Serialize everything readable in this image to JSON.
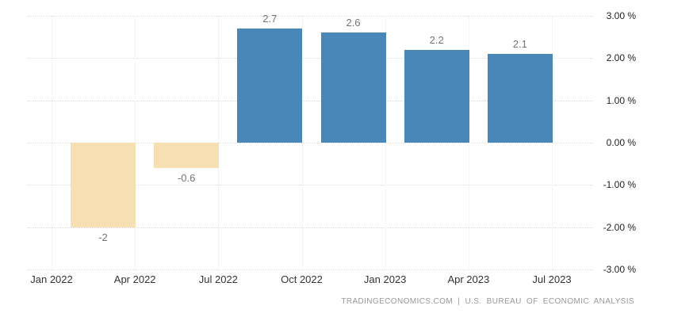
{
  "chart_data": {
    "type": "bar",
    "title": "",
    "x_tick_labels": [
      "Jan 2022",
      "Apr 2022",
      "Jul 2022",
      "Oct 2022",
      "Jan 2023",
      "Apr 2023",
      "Jul 2023"
    ],
    "values": [
      -2,
      -0.6,
      2.7,
      2.6,
      2.2,
      2.1
    ],
    "value_labels": [
      "-2",
      "-0.6",
      "2.7",
      "2.6",
      "2.2",
      "2.1"
    ],
    "y_ticks": [
      3,
      2,
      1,
      0,
      -1,
      -2,
      -3
    ],
    "y_tick_labels": [
      "3.00 %",
      "2.00 %",
      "1.00 %",
      "0.00 %",
      "-1.00 %",
      "-2.00 %",
      "-3.00 %"
    ],
    "ylim": [
      -3,
      3
    ],
    "grid": "dotted",
    "legend": "none",
    "colors": {
      "positive_bar": "#4987b9",
      "negative_bar": "#f5dfb3",
      "value_label": "#737373",
      "axis_label": "#333333",
      "gridline": "#d9d9d9"
    }
  },
  "footer": {
    "attribution": "TRADINGECONOMICS.COM | U.S. BUREAU OF ECONOMIC ANALYSIS"
  }
}
